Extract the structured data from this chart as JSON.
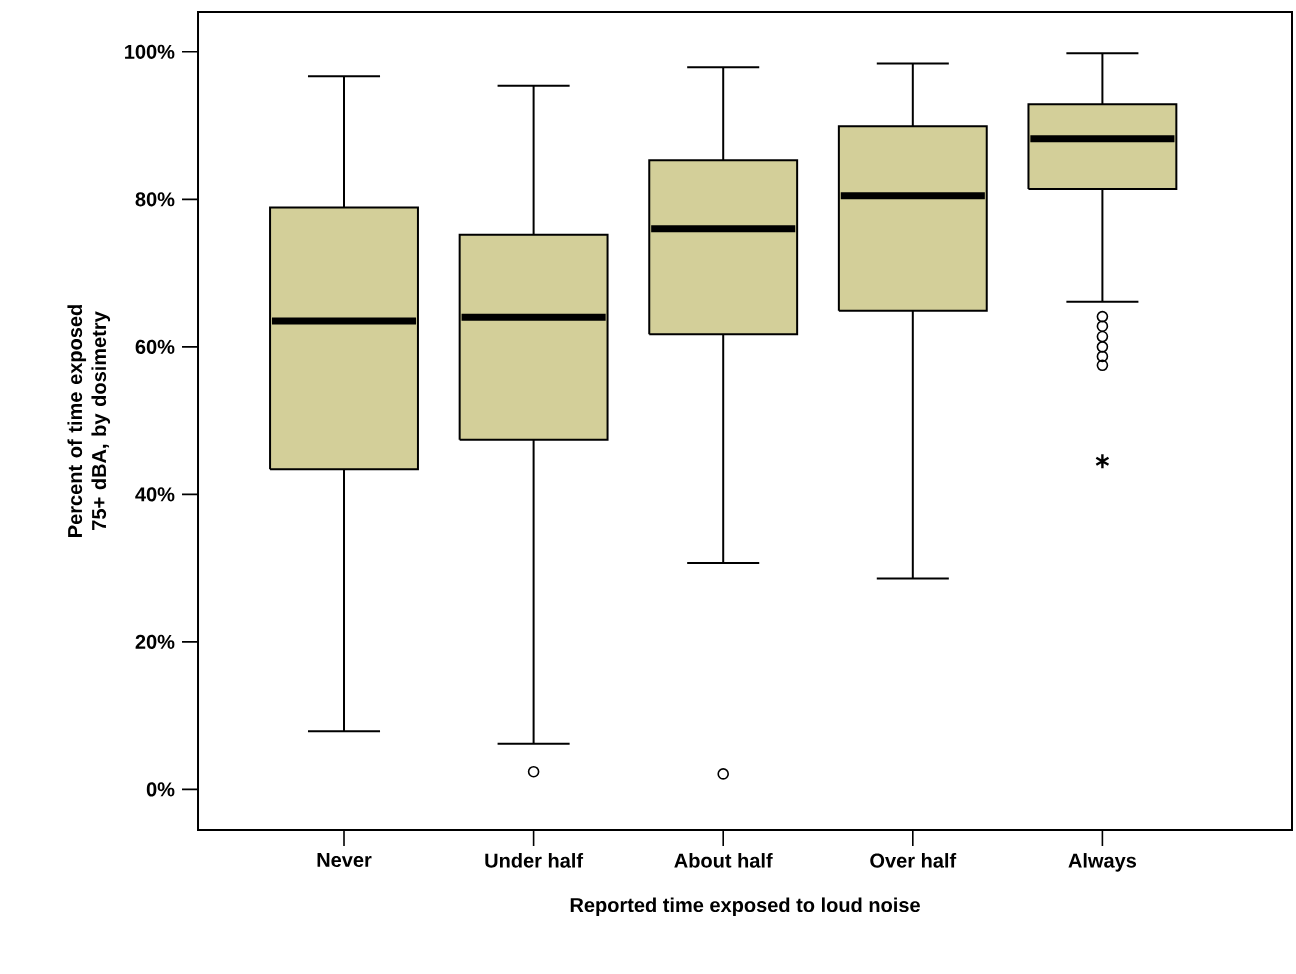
{
  "chart_data": {
    "type": "box",
    "xlabel": "Reported time exposed to loud noise",
    "ylabel": "Percent of time exposed 75+ dBA, by dosimetry",
    "categories": [
      "Never",
      "Under half",
      "About half",
      "Over half",
      "Always"
    ],
    "color": "#d3cf99",
    "boxes": [
      {
        "low": 7.9,
        "q1": 43.4,
        "median": 63.5,
        "q3": 78.9,
        "high": 96.7
      },
      {
        "low": 6.2,
        "q1": 47.4,
        "median": 64.0,
        "q3": 75.2,
        "high": 95.4,
        "outliers": [
          2.4
        ]
      },
      {
        "low": 30.7,
        "q1": 61.7,
        "median": 76.0,
        "q3": 85.3,
        "high": 97.9,
        "outliers": [
          2.1
        ]
      },
      {
        "low": 28.6,
        "q1": 64.9,
        "median": 80.5,
        "q3": 89.9,
        "high": 98.4
      },
      {
        "low": 66.1,
        "q1": 81.4,
        "median": 88.2,
        "q3": 92.9,
        "high": 99.8,
        "outliers": [
          64.1,
          62.8,
          61.4,
          60.0,
          58.7,
          57.5
        ]
      }
    ],
    "series": [
      {
        "type": "scatter",
        "marker": "cross",
        "color": "#000000",
        "x": [
          "Always"
        ],
        "values": [
          44.5
        ]
      }
    ],
    "ylim": [
      -5.5,
      105.4
    ],
    "yticks": [
      {
        "value": 0,
        "label": "0%"
      },
      {
        "value": 20,
        "label": "20%"
      },
      {
        "value": 40,
        "label": "40%"
      },
      {
        "value": 60,
        "label": "60%"
      },
      {
        "value": 80,
        "label": "80%"
      },
      {
        "value": 100,
        "label": "100%"
      }
    ],
    "grid": false
  }
}
